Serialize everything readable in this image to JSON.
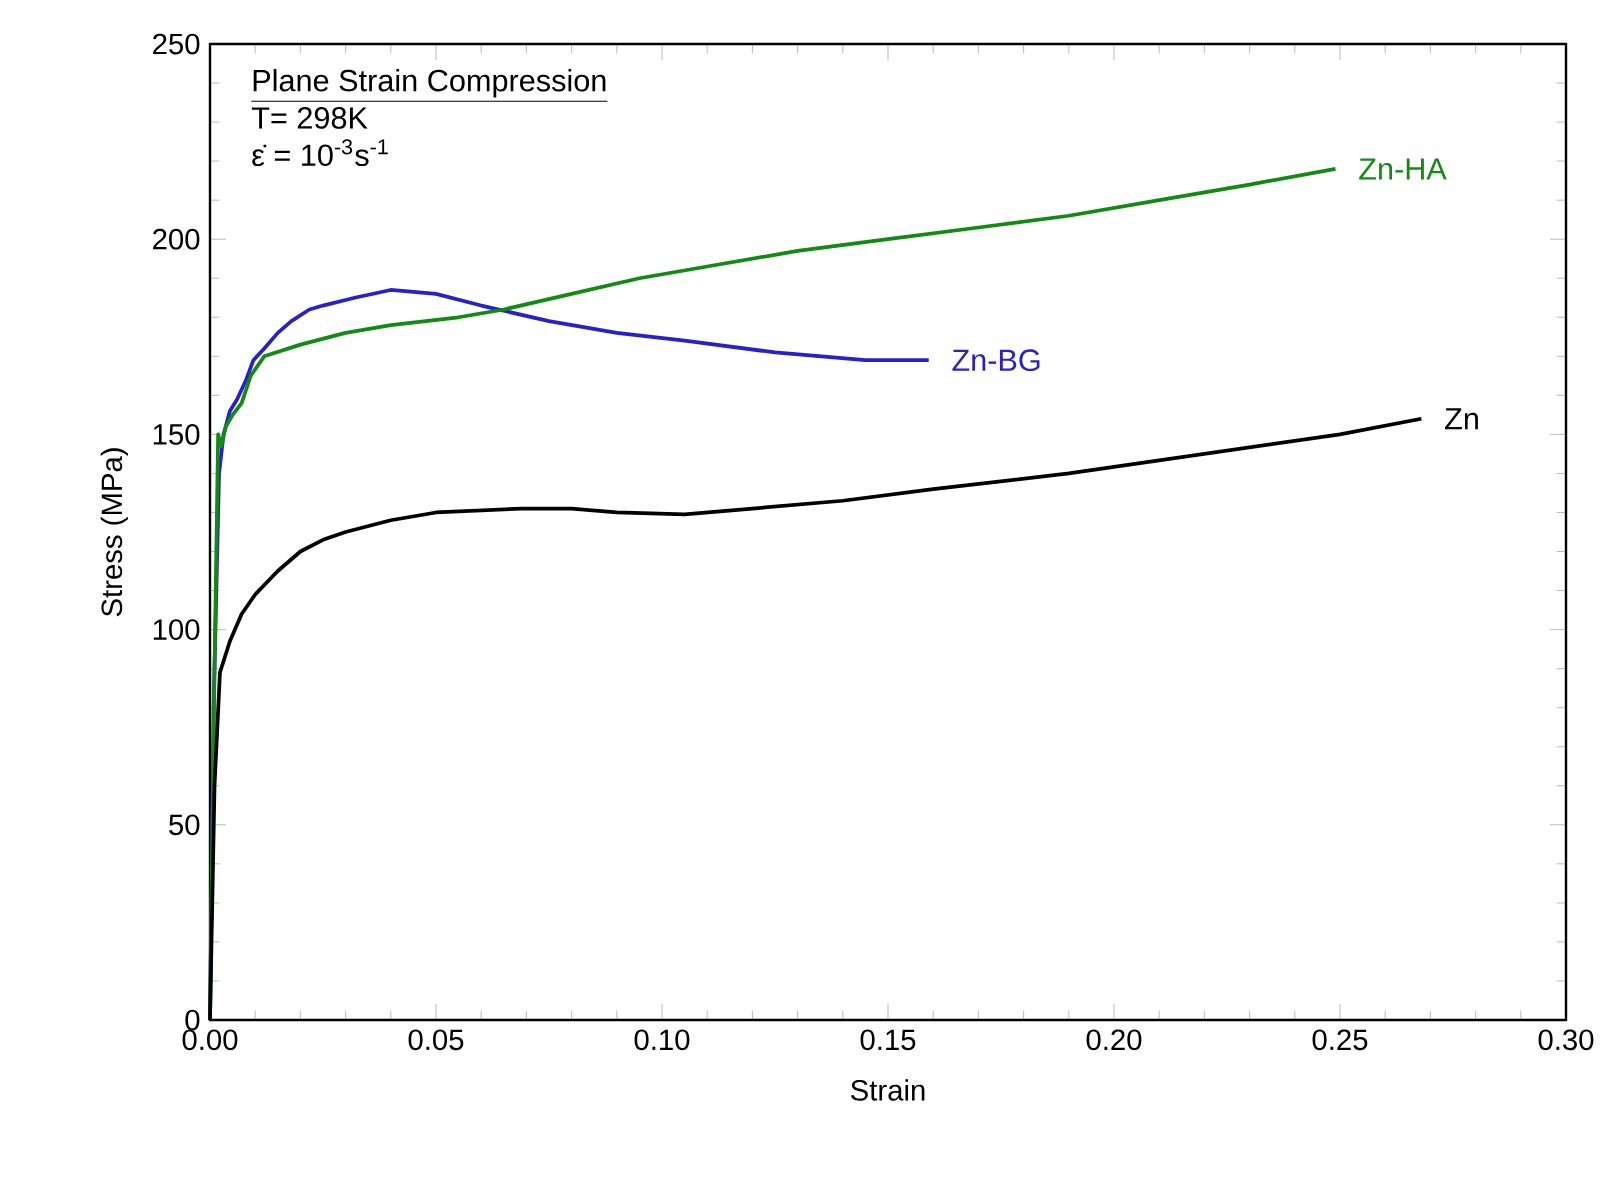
{
  "chart_data": {
    "type": "line",
    "xlabel": "Strain",
    "ylabel": "Stress (MPa)",
    "annotations": [
      "Plane Strain Compression",
      "T= 298K",
      "ε̇ = 10$^{-3}$s$^{-1}$"
    ],
    "xlim": [
      0,
      0.3
    ],
    "ylim": [
      0,
      250
    ],
    "xticks": [
      {
        "value": 0,
        "label": "0.00"
      },
      {
        "value": 0.05,
        "label": "0.05"
      },
      {
        "value": 0.1,
        "label": "0.10"
      },
      {
        "value": 0.15,
        "label": "0.15"
      },
      {
        "value": 0.2,
        "label": "0.20"
      },
      {
        "value": 0.25,
        "label": "0.25"
      },
      {
        "value": 0.3,
        "label": "0.30"
      }
    ],
    "yticks": [
      0,
      50,
      100,
      150,
      200,
      250
    ],
    "grid": false,
    "legend": false,
    "marker": "none",
    "line_style": "solid",
    "series": [
      {
        "name": "Zn-BG",
        "color": "#2a1fcf",
        "x": [
          0,
          0.0008,
          0.002,
          0.003,
          0.0044,
          0.006,
          0.008,
          0.0096,
          0.012,
          0.015,
          0.018,
          0.022,
          0.025,
          0.032,
          0.04,
          0.05,
          0.06,
          0.075,
          0.09,
          0.105,
          0.125,
          0.135,
          0.145,
          0.159
        ],
        "values": [
          0,
          80,
          140,
          150,
          156,
          159,
          164,
          169,
          172,
          176,
          179,
          182,
          183,
          185,
          187,
          186,
          183,
          179,
          176,
          174,
          171,
          170,
          169,
          169
        ]
      },
      {
        "name": "Zn-HA",
        "color": "#138a13",
        "x": [
          0,
          0.001,
          0.0018,
          0.0025,
          0.0035,
          0.005,
          0.007,
          0.009,
          0.012,
          0.02,
          0.03,
          0.04,
          0.055,
          0.065,
          0.08,
          0.095,
          0.11,
          0.13,
          0.15,
          0.17,
          0.19,
          0.21,
          0.23,
          0.249
        ],
        "values": [
          0,
          90,
          150,
          147,
          152,
          155,
          158,
          165,
          170,
          173,
          176,
          178,
          180,
          182,
          186,
          190,
          193,
          197,
          200,
          203,
          206,
          210,
          214,
          218
        ]
      },
      {
        "name": "Zn",
        "color": "#000000",
        "x": [
          0,
          0.001,
          0.0022,
          0.0044,
          0.007,
          0.01,
          0.015,
          0.02,
          0.025,
          0.03,
          0.04,
          0.05,
          0.069,
          0.08,
          0.09,
          0.105,
          0.12,
          0.14,
          0.16,
          0.19,
          0.22,
          0.25,
          0.268
        ],
        "values": [
          0,
          60,
          89,
          97,
          104,
          109,
          115,
          120,
          123,
          125,
          128,
          130,
          131,
          131,
          130,
          129.5,
          131,
          133,
          136,
          140,
          145,
          150,
          154
        ]
      }
    ]
  }
}
